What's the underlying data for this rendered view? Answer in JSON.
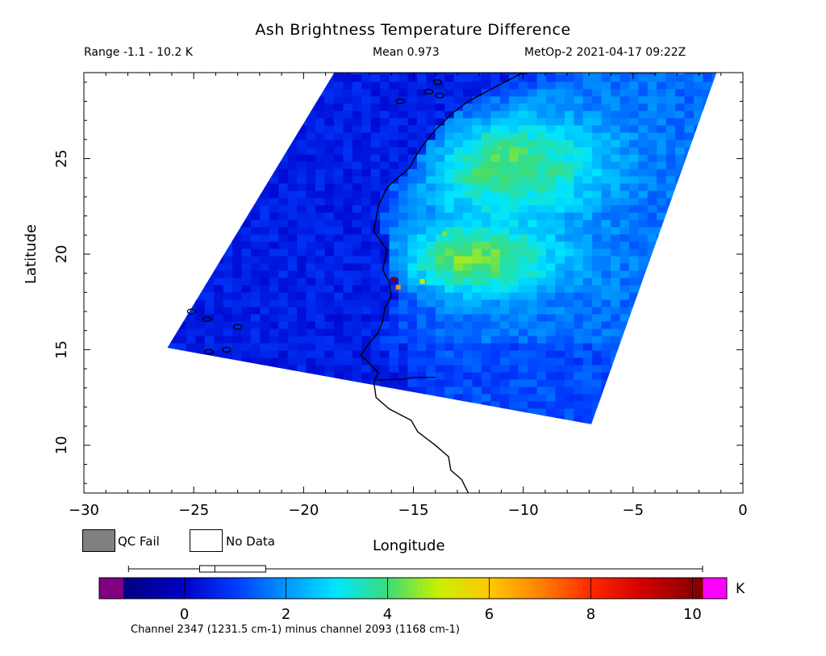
{
  "header": {
    "title": "Ash Brightness Temperature Difference",
    "range_text": "Range -1.1 - 10.2 K",
    "mean_text": "Mean 0.973",
    "satellite_text": "MetOp-2 2021-04-17 09:22Z"
  },
  "legend": {
    "qc_fail": "QC Fail",
    "no_data": "No Data",
    "qc_fail_color": "#808080",
    "no_data_color": "#ffffff"
  },
  "colorbar": {
    "unit": "K",
    "caption": "Channel 2347 (1231.5 cm-1) minus channel 2093 (1168 cm-1)",
    "ticks": [
      "0",
      "2",
      "4",
      "6",
      "8",
      "10"
    ],
    "tick_values": [
      0,
      2,
      4,
      6,
      8,
      10
    ],
    "range": [
      -1.2,
      10.2
    ],
    "under_color": "#800080",
    "over_color": "#ff00ff",
    "boxplot": {
      "min": -1.1,
      "q1": 0.3,
      "median": 0.6,
      "q3": 1.6,
      "max": 10.2
    }
  },
  "chart_data": {
    "type": "heatmap",
    "title": "Ash Brightness Temperature Difference",
    "xlabel": "Longitude",
    "ylabel": "Latitude",
    "xlim": [
      -30,
      0
    ],
    "ylim": [
      7.5,
      29.5
    ],
    "x_ticks": [
      -30,
      -25,
      -20,
      -15,
      -10,
      -5,
      0
    ],
    "y_ticks": [
      10,
      15,
      20,
      25
    ],
    "x_tick_labels": [
      "−30",
      "−25",
      "−20",
      "−15",
      "−10",
      "−5",
      "0"
    ],
    "y_tick_labels": [
      "10",
      "15",
      "20",
      "25"
    ],
    "value_range": [
      -1.1,
      10.2
    ],
    "mean": 0.973,
    "units": "K",
    "swath_corners": [
      [
        -26.2,
        15.1
      ],
      [
        -18.6,
        29.5
      ],
      [
        -1.2,
        29.5
      ],
      [
        -6.9,
        11.1
      ]
    ],
    "coast_lon_lat": [
      [
        -12.5,
        7.5
      ],
      [
        -12.8,
        8.2
      ],
      [
        -13.3,
        8.7
      ],
      [
        -13.4,
        9.4
      ],
      [
        -14.0,
        10.0
      ],
      [
        -14.8,
        10.7
      ],
      [
        -15.1,
        11.3
      ],
      [
        -16.1,
        11.9
      ],
      [
        -16.7,
        12.5
      ],
      [
        -16.8,
        13.3
      ],
      [
        -16.6,
        13.8
      ],
      [
        -17.0,
        14.3
      ],
      [
        -17.4,
        14.7
      ],
      [
        -17.1,
        15.2
      ],
      [
        -16.6,
        15.9
      ],
      [
        -16.4,
        16.5
      ],
      [
        -16.3,
        17.2
      ],
      [
        -16.0,
        17.8
      ],
      [
        -16.1,
        18.5
      ],
      [
        -16.4,
        19.2
      ],
      [
        -16.2,
        20.2
      ],
      [
        -16.8,
        21.2
      ],
      [
        -16.6,
        22.5
      ],
      [
        -16.2,
        23.5
      ],
      [
        -15.2,
        24.5
      ],
      [
        -14.7,
        25.5
      ],
      [
        -14.0,
        26.5
      ],
      [
        -13.2,
        27.4
      ],
      [
        -12.5,
        28.0
      ],
      [
        -11.2,
        28.8
      ],
      [
        -10.0,
        29.5
      ]
    ],
    "hotspots": [
      {
        "lon": -15.8,
        "lat": 18.6,
        "value": 10.2
      },
      {
        "lon": -15.6,
        "lat": 18.2,
        "value": 6.8
      },
      {
        "lon": -14.5,
        "lat": 18.5,
        "value": 4.9
      },
      {
        "lon": -13.5,
        "lat": 21.0,
        "value": 4.4
      },
      {
        "lon": -11.0,
        "lat": 25.5,
        "value": 4.2
      }
    ]
  }
}
